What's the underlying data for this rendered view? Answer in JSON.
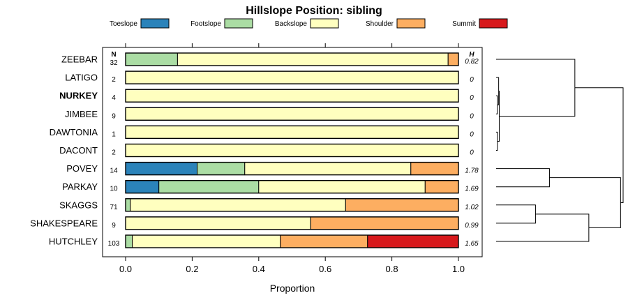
{
  "chart_data": {
    "type": "bar",
    "stacked": true,
    "orientation": "horizontal",
    "title": "Hillslope Position: sibling",
    "xlabel": "Proportion",
    "ylabel": "",
    "xlim": [
      0,
      1
    ],
    "x_ticks": [
      "0.0",
      "0.2",
      "0.4",
      "0.6",
      "0.8",
      "1.0"
    ],
    "x_tick_values": [
      0,
      0.2,
      0.4,
      0.6,
      0.8,
      1.0
    ],
    "n_header": "N",
    "h_header": "H",
    "legend_position": "top",
    "categories": [
      "ZEEBAR",
      "LATIGO",
      "NURKEY",
      "JIMBEE",
      "DAWTONIA",
      "DACONT",
      "POVEY",
      "PARKAY",
      "SKAGGS",
      "SHAKESPEARE",
      "HUTCHLEY"
    ],
    "highlighted_category": "NURKEY",
    "n": [
      "32",
      "2",
      "4",
      "9",
      "1",
      "2",
      "14",
      "10",
      "71",
      "9",
      "103"
    ],
    "h": [
      "0.82",
      "0",
      "0",
      "0",
      "0",
      "0",
      "1.78",
      "1.69",
      "1.02",
      "0.99",
      "1.65"
    ],
    "series": [
      {
        "name": "Toeslope",
        "color": "#2b83ba",
        "values": [
          0,
          0,
          0,
          0,
          0,
          0,
          0.215,
          0.1,
          0,
          0,
          0
        ]
      },
      {
        "name": "Footslope",
        "color": "#abdda4",
        "values": [
          0.156,
          0,
          0,
          0,
          0,
          0,
          0.143,
          0.3,
          0.014,
          0,
          0.02
        ]
      },
      {
        "name": "Backslope",
        "color": "#ffffbf",
        "values": [
          0.813,
          1,
          1,
          1,
          1,
          1,
          0.499,
          0.5,
          0.647,
          0.556,
          0.445
        ]
      },
      {
        "name": "Shoulder",
        "color": "#fdae61",
        "values": [
          0.031,
          0,
          0,
          0,
          0,
          0,
          0.143,
          0.1,
          0.339,
          0.444,
          0.262
        ]
      },
      {
        "name": "Summit",
        "color": "#d7191c",
        "values": [
          0,
          0,
          0,
          0,
          0,
          0,
          0,
          0,
          0,
          0,
          0.273
        ]
      }
    ],
    "dendrogram": {
      "merges": [
        {
          "a": "NURKEY",
          "b": "JIMBEE",
          "height": 0.01
        },
        {
          "a": "DAWTONIA",
          "b": "DACONT",
          "height": 0.01
        },
        {
          "a": "LATIGO",
          "b": "NURKEY+JIMBEE",
          "height": 0.02
        },
        {
          "a": "LATIGO+NURKEY+JIMBEE",
          "b": "DAWTONIA+DACONT",
          "height": 0.025
        },
        {
          "a": "ZEEBAR",
          "b": "LATIGO..DACONT",
          "height": 0.62
        },
        {
          "a": "POVEY",
          "b": "PARKAY",
          "height": 0.42
        },
        {
          "a": "SKAGGS",
          "b": "SHAKESPEARE",
          "height": 0.31
        },
        {
          "a": "SKAGGS+SHAKESPEARE",
          "b": "HUTCHLEY",
          "height": 0.73
        },
        {
          "a": "POVEY+PARKAY",
          "b": "SKAGGS+SHAKESPEARE+HUTCHLEY",
          "height": 0.98
        },
        {
          "a": "ZEEBAR..DACONT",
          "b": "POVEY..HUTCHLEY",
          "height": 1.0
        }
      ]
    }
  }
}
